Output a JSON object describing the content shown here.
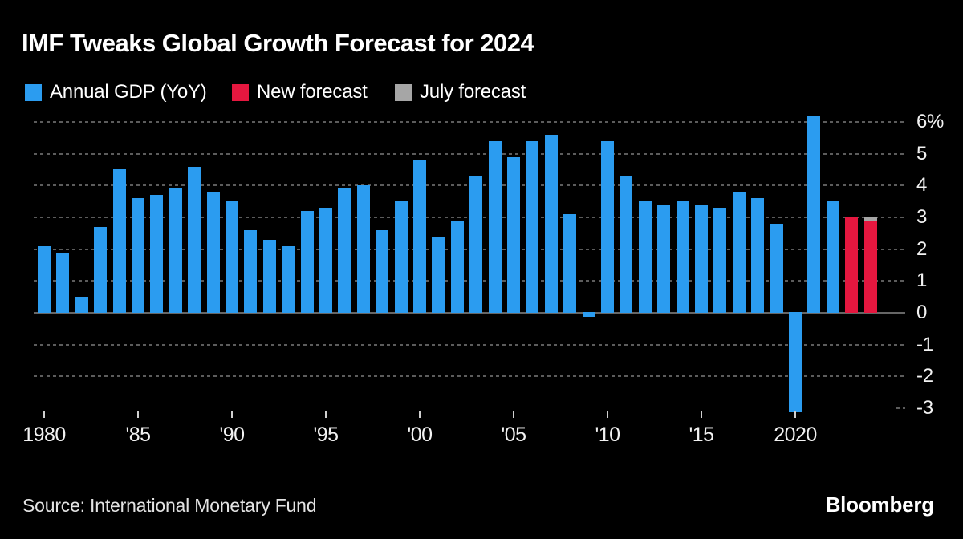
{
  "title": "IMF Tweaks Global Growth Forecast for 2024",
  "legend": {
    "items": [
      {
        "label": "Annual GDP (YoY)",
        "color": "#2B9CF0"
      },
      {
        "label": "New forecast",
        "color": "#E5173F"
      },
      {
        "label": "July forecast",
        "color": "#A6A6A6"
      }
    ]
  },
  "source_note": "Source: International Monetary Fund",
  "brand": "Bloomberg",
  "colors": {
    "background": "#000000",
    "bar_blue": "#2B9CF0",
    "bar_red": "#E5173F",
    "bar_gray": "#A6A6A6",
    "gridline": "#5c5c5c",
    "zero_line": "#666666",
    "axis_text": "#f2f2f2",
    "tick": "#cfcfcf"
  },
  "chart_data": {
    "type": "bar",
    "title": "IMF Tweaks Global Growth Forecast for 2024",
    "ylabel": "%",
    "ylim": [
      -3,
      6.5
    ],
    "grid": "horizontal dotted gridlines at 6..-2, solid zero line, short stub tick at -3",
    "legend_position": "top-left",
    "x": [
      1980,
      1981,
      1982,
      1983,
      1984,
      1985,
      1986,
      1987,
      1988,
      1989,
      1990,
      1991,
      1992,
      1993,
      1994,
      1995,
      1996,
      1997,
      1998,
      1999,
      2000,
      2001,
      2002,
      2003,
      2004,
      2005,
      2006,
      2007,
      2008,
      2009,
      2010,
      2011,
      2012,
      2013,
      2014,
      2015,
      2016,
      2017,
      2018,
      2019,
      2020,
      2021,
      2022,
      2023,
      2024
    ],
    "series": [
      {
        "name": "Annual GDP (YoY)",
        "color": "#2B9CF0",
        "values": [
          2.1,
          1.9,
          0.5,
          2.7,
          4.5,
          3.6,
          3.7,
          3.9,
          4.6,
          3.8,
          3.5,
          2.6,
          2.3,
          2.1,
          3.2,
          3.3,
          3.9,
          4.0,
          2.6,
          3.5,
          4.8,
          2.4,
          2.9,
          4.3,
          5.4,
          4.9,
          5.4,
          5.6,
          3.1,
          -0.1,
          5.4,
          4.3,
          3.5,
          3.4,
          3.5,
          3.4,
          3.3,
          3.8,
          3.6,
          2.8,
          -3.1,
          6.2,
          3.5,
          null,
          null
        ]
      },
      {
        "name": "New forecast",
        "color": "#E5173F",
        "values": [
          null,
          null,
          null,
          null,
          null,
          null,
          null,
          null,
          null,
          null,
          null,
          null,
          null,
          null,
          null,
          null,
          null,
          null,
          null,
          null,
          null,
          null,
          null,
          null,
          null,
          null,
          null,
          null,
          null,
          null,
          null,
          null,
          null,
          null,
          null,
          null,
          null,
          null,
          null,
          null,
          null,
          null,
          null,
          3.0,
          2.9
        ]
      },
      {
        "name": "July forecast",
        "color": "#A6A6A6",
        "values": [
          null,
          null,
          null,
          null,
          null,
          null,
          null,
          null,
          null,
          null,
          null,
          null,
          null,
          null,
          null,
          null,
          null,
          null,
          null,
          null,
          null,
          null,
          null,
          null,
          null,
          null,
          null,
          null,
          null,
          null,
          null,
          null,
          null,
          null,
          null,
          null,
          null,
          null,
          null,
          null,
          null,
          null,
          null,
          null,
          3.0
        ]
      }
    ],
    "y_ticks": [
      {
        "value": 6,
        "label": "6%"
      },
      {
        "value": 5,
        "label": "5"
      },
      {
        "value": 4,
        "label": "4"
      },
      {
        "value": 3,
        "label": "3"
      },
      {
        "value": 2,
        "label": "2"
      },
      {
        "value": 1,
        "label": "1"
      },
      {
        "value": 0,
        "label": "0"
      },
      {
        "value": -1,
        "label": "-1"
      },
      {
        "value": -2,
        "label": "-2"
      },
      {
        "value": -3,
        "label": "-3"
      }
    ],
    "x_ticks": [
      {
        "year": 1980,
        "label": "1980"
      },
      {
        "year": 1985,
        "label": "'85"
      },
      {
        "year": 1990,
        "label": "'90"
      },
      {
        "year": 1995,
        "label": "'95"
      },
      {
        "year": 2000,
        "label": "'00"
      },
      {
        "year": 2005,
        "label": "'05"
      },
      {
        "year": 2010,
        "label": "'10"
      },
      {
        "year": 2015,
        "label": "'15"
      },
      {
        "year": 2020,
        "label": "2020"
      }
    ]
  }
}
